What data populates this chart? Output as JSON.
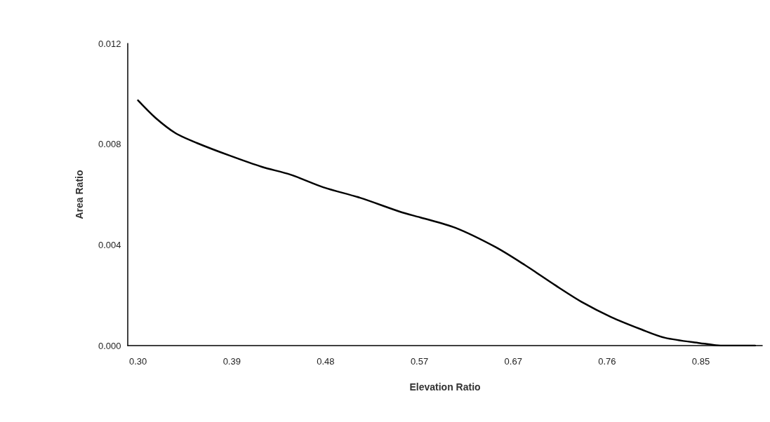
{
  "chart_data": {
    "type": "line",
    "xlabel": "Elevation Ratio",
    "ylabel": "Area Ratio",
    "x": [
      0.3,
      0.317,
      0.337,
      0.358,
      0.39,
      0.421,
      0.449,
      0.481,
      0.517,
      0.558,
      0.576,
      0.61,
      0.649,
      0.678,
      0.708,
      0.735,
      0.762,
      0.792,
      0.815,
      0.849,
      0.871,
      0.903
    ],
    "series": [
      {
        "color": "#000000",
        "values": [
          0.00974,
          0.00905,
          0.00843,
          0.00804,
          0.00754,
          0.0071,
          0.00679,
          0.00629,
          0.00587,
          0.00529,
          0.00509,
          0.00468,
          0.00392,
          0.0032,
          0.00239,
          0.0017,
          0.00114,
          0.00064,
          0.00031,
          0.0001,
          0.0,
          0.0
        ]
      }
    ],
    "xlim": [
      0.29,
      0.91
    ],
    "xticks": [
      {
        "value": 0.3,
        "label": "0.30"
      },
      {
        "value": 0.3917,
        "label": "0.39"
      },
      {
        "value": 0.4833,
        "label": "0.48"
      },
      {
        "value": 0.575,
        "label": "0.57"
      },
      {
        "value": 0.6667,
        "label": "0.67"
      },
      {
        "value": 0.7583,
        "label": "0.76"
      },
      {
        "value": 0.85,
        "label": "0.85"
      }
    ],
    "ylim": [
      0,
      0.012
    ],
    "yticks": [
      {
        "value": 0,
        "label": "0.000"
      },
      {
        "value": 0.004,
        "label": "0.004"
      },
      {
        "value": 0.008,
        "label": "0.008"
      },
      {
        "value": 0.012,
        "label": "0.012"
      }
    ],
    "grid": false,
    "marker": "none",
    "line_style": "solid"
  }
}
